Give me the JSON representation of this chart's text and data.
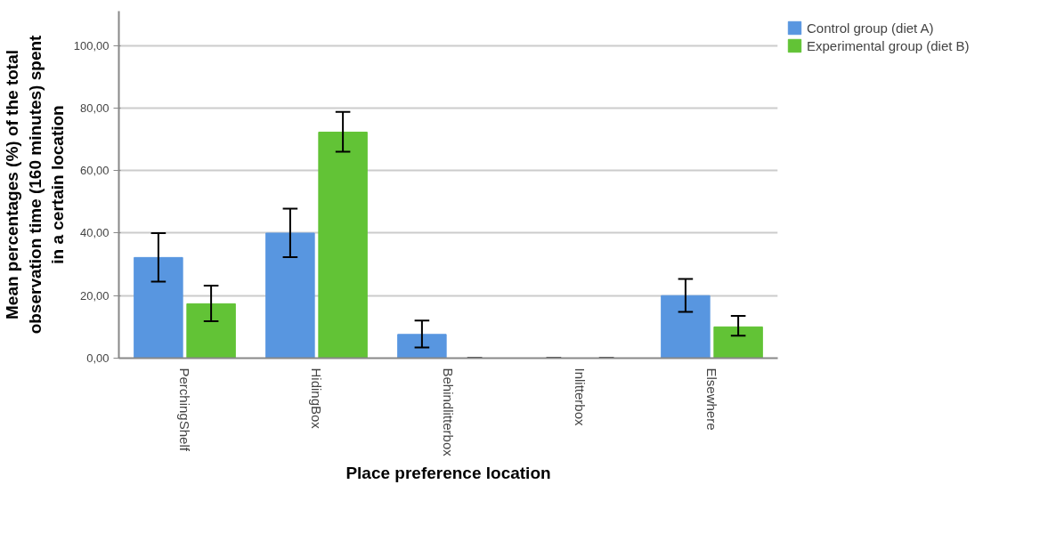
{
  "chart_data": {
    "type": "bar",
    "xlabel": "Place preference location",
    "ylabel": "Mean percentages (%) of the total observation time (160 minutes) spent in a certain location",
    "categories": [
      "PerchingShelf",
      "HidingBox",
      "Behindlitterbox",
      "Inlitterbox",
      "Elsewhere"
    ],
    "series": [
      {
        "name": "Control group (diet A)",
        "color": "#5896e0",
        "values": [
          32.2,
          40.0,
          7.6,
          0,
          20.0
        ],
        "errors": [
          [
            24.5,
            40.0
          ],
          [
            32.3,
            47.8
          ],
          [
            3.4,
            12.0
          ],
          [
            0,
            0
          ],
          [
            14.8,
            25.3
          ]
        ]
      },
      {
        "name": "Experimental group (diet B)",
        "color": "#62c336",
        "values": [
          17.4,
          72.3,
          0,
          0,
          10.0
        ],
        "errors": [
          [
            11.8,
            23.2
          ],
          [
            66.0,
            78.8
          ],
          [
            0,
            0
          ],
          [
            0,
            0
          ],
          [
            7.2,
            13.5
          ]
        ]
      }
    ],
    "ylim": [
      0,
      111
    ],
    "yticks": [
      {
        "value": 0,
        "label": "0,00"
      },
      {
        "value": 20,
        "label": "20,00"
      },
      {
        "value": 40,
        "label": "40,00"
      },
      {
        "value": 60,
        "label": "60,00"
      },
      {
        "value": 80,
        "label": "80,00"
      },
      {
        "value": 100,
        "label": "100,00"
      }
    ],
    "grid": "y",
    "legend": "top right"
  }
}
